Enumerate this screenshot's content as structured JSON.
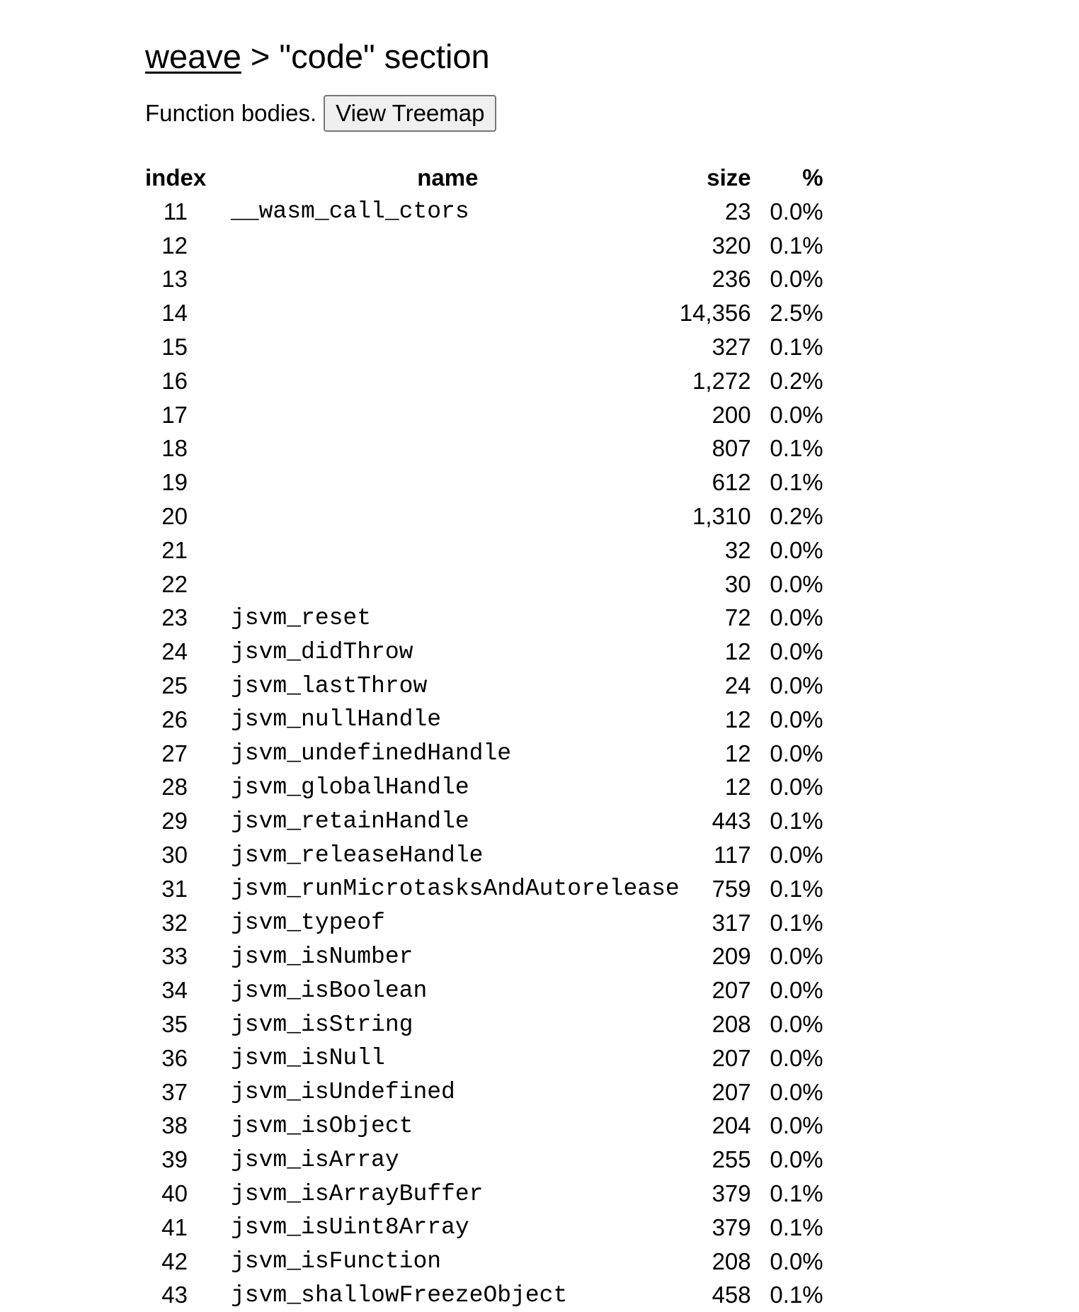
{
  "header": {
    "link": "weave",
    "title_rest": " > \"code\" section"
  },
  "subtitle": {
    "description": "Function bodies.",
    "button_label": "View Treemap"
  },
  "table": {
    "columns": [
      "index",
      "name",
      "size",
      "%"
    ],
    "rows": [
      {
        "index": "11",
        "name": "__wasm_call_ctors",
        "size": "23",
        "pct": "0.0%"
      },
      {
        "index": "12",
        "name": "",
        "size": "320",
        "pct": "0.1%"
      },
      {
        "index": "13",
        "name": "",
        "size": "236",
        "pct": "0.0%"
      },
      {
        "index": "14",
        "name": "",
        "size": "14,356",
        "pct": "2.5%"
      },
      {
        "index": "15",
        "name": "",
        "size": "327",
        "pct": "0.1%"
      },
      {
        "index": "16",
        "name": "",
        "size": "1,272",
        "pct": "0.2%"
      },
      {
        "index": "17",
        "name": "",
        "size": "200",
        "pct": "0.0%"
      },
      {
        "index": "18",
        "name": "",
        "size": "807",
        "pct": "0.1%"
      },
      {
        "index": "19",
        "name": "",
        "size": "612",
        "pct": "0.1%"
      },
      {
        "index": "20",
        "name": "",
        "size": "1,310",
        "pct": "0.2%"
      },
      {
        "index": "21",
        "name": "",
        "size": "32",
        "pct": "0.0%"
      },
      {
        "index": "22",
        "name": "",
        "size": "30",
        "pct": "0.0%"
      },
      {
        "index": "23",
        "name": "jsvm_reset",
        "size": "72",
        "pct": "0.0%"
      },
      {
        "index": "24",
        "name": "jsvm_didThrow",
        "size": "12",
        "pct": "0.0%"
      },
      {
        "index": "25",
        "name": "jsvm_lastThrow",
        "size": "24",
        "pct": "0.0%"
      },
      {
        "index": "26",
        "name": "jsvm_nullHandle",
        "size": "12",
        "pct": "0.0%"
      },
      {
        "index": "27",
        "name": "jsvm_undefinedHandle",
        "size": "12",
        "pct": "0.0%"
      },
      {
        "index": "28",
        "name": "jsvm_globalHandle",
        "size": "12",
        "pct": "0.0%"
      },
      {
        "index": "29",
        "name": "jsvm_retainHandle",
        "size": "443",
        "pct": "0.1%"
      },
      {
        "index": "30",
        "name": "jsvm_releaseHandle",
        "size": "117",
        "pct": "0.0%"
      },
      {
        "index": "31",
        "name": "jsvm_runMicrotasksAndAutorelease",
        "size": "759",
        "pct": "0.1%"
      },
      {
        "index": "32",
        "name": "jsvm_typeof",
        "size": "317",
        "pct": "0.1%"
      },
      {
        "index": "33",
        "name": "jsvm_isNumber",
        "size": "209",
        "pct": "0.0%"
      },
      {
        "index": "34",
        "name": "jsvm_isBoolean",
        "size": "207",
        "pct": "0.0%"
      },
      {
        "index": "35",
        "name": "jsvm_isString",
        "size": "208",
        "pct": "0.0%"
      },
      {
        "index": "36",
        "name": "jsvm_isNull",
        "size": "207",
        "pct": "0.0%"
      },
      {
        "index": "37",
        "name": "jsvm_isUndefined",
        "size": "207",
        "pct": "0.0%"
      },
      {
        "index": "38",
        "name": "jsvm_isObject",
        "size": "204",
        "pct": "0.0%"
      },
      {
        "index": "39",
        "name": "jsvm_isArray",
        "size": "255",
        "pct": "0.0%"
      },
      {
        "index": "40",
        "name": "jsvm_isArrayBuffer",
        "size": "379",
        "pct": "0.1%"
      },
      {
        "index": "41",
        "name": "jsvm_isUint8Array",
        "size": "379",
        "pct": "0.1%"
      },
      {
        "index": "42",
        "name": "jsvm_isFunction",
        "size": "208",
        "pct": "0.0%"
      },
      {
        "index": "43",
        "name": "jsvm_shallowFreezeObject",
        "size": "458",
        "pct": "0.1%"
      }
    ]
  }
}
